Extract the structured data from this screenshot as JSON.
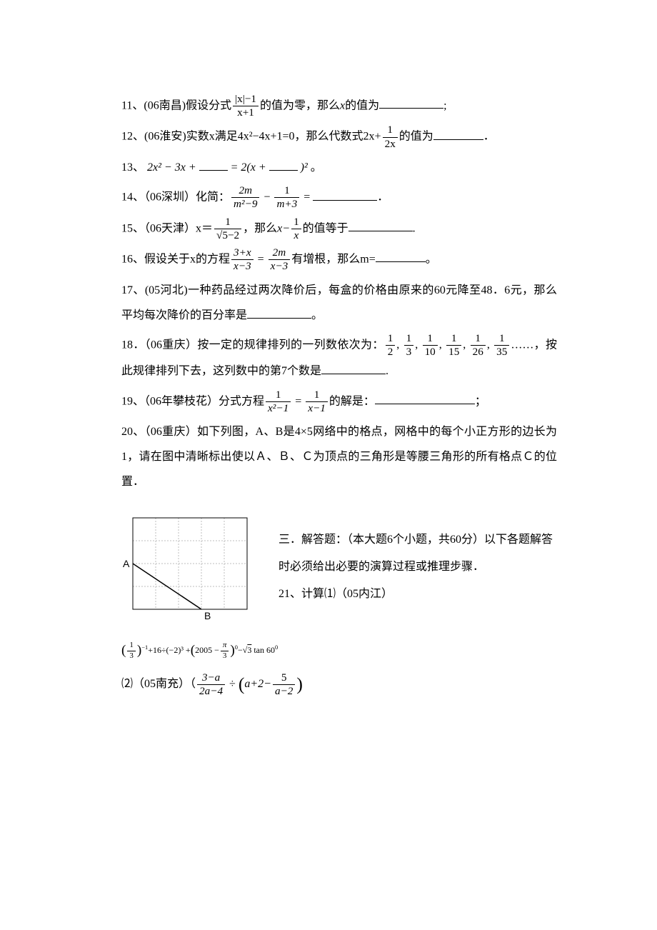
{
  "questions": {
    "q11": {
      "num": "11、",
      "source": "(06南昌)",
      "prefix": "假设分式",
      "frac_num": "|x|−1",
      "frac_den": "x+1",
      "suffix1": "的值为零，那么",
      "var": "x",
      "suffix2": "的值为",
      "tail": ";"
    },
    "q12": {
      "num": "12、",
      "source": "(06淮安)",
      "text1": "实数x满足4x²−4x+1=0，那么代数式2x+",
      "frac_num": "1",
      "frac_den": "2x",
      "text2": "的值为",
      "tail": "．"
    },
    "q13": {
      "num": "13、",
      "expr1": "2x² − 3x +",
      "expr2": "= 2(x +",
      "expr3": ")²",
      "tail": "。"
    },
    "q14": {
      "num": "14、",
      "source": "（06深圳）",
      "label": "化简：",
      "f1_num": "2m",
      "f1_den": "m²−9",
      "minus": "−",
      "f2_num": "1",
      "f2_den": "m+3",
      "eq": "=",
      "tail": "．"
    },
    "q15": {
      "num": "15、",
      "source": "（06天津）",
      "text1": "x＝",
      "f1_num": "1",
      "f1_den": "√5−2",
      "text2": "，那么",
      "var": "x−",
      "f2_num": "1",
      "f2_den": "x",
      "text3": "的值等于",
      "tail": "."
    },
    "q16": {
      "num": "16、",
      "text1": "假设关于x的方程",
      "f1_num": "3+x",
      "f1_den": "x−3",
      "eq": "=",
      "f2_num": "2m",
      "f2_den": "x−3",
      "text2": "有增根，那么m=",
      "tail": "。"
    },
    "q17": {
      "num": "17、",
      "source": "(05河北)",
      "text": "一种药品经过两次降价后，每盒的价格由原来的60元降至48．6元，那么平均每次降价的百分率是",
      "tail": "。"
    },
    "q18": {
      "num": "18．",
      "source": "（06重庆）",
      "text1": "按一定的规律排列的一列数依次为：",
      "seq": [
        "1/2",
        "1/3",
        "1/10",
        "1/15",
        "1/26",
        "1/35"
      ],
      "text2": "……，按此规律排列下去，这列数中的第7个数是",
      "tail": "."
    },
    "q19": {
      "num": "19、",
      "source": "（06年攀枝花）",
      "text1": "分式方程",
      "f1_num": "1",
      "f1_den": "x²−1",
      "eq": "=",
      "f2_num": "1",
      "f2_den": "x−1",
      "text2": "的解是：",
      "tail": "；"
    },
    "q20": {
      "num": "20、",
      "source": "（06重庆）",
      "text": "如下列图，A、B是4×5网络中的格点，网格中的每个小正方形的边长为1，请在图中清晰标出使以Ａ、Ｂ、Ｃ为顶点的三角形是等腰三角形的所有格点Ｃ的位置．"
    }
  },
  "section3": {
    "title": "三．解答题：（本大题6个小题，共60分）以下各题解答时必须给出必要的演算过程或推理步骤．",
    "q21_label": "21、计算⑴（05内江）",
    "q21_formula": {
      "p1_num": "1",
      "p1_den": "3",
      "exp1": "−1",
      "t1": "+16÷(−2)³ +",
      "p2_inner": "2005 −",
      "p2_num": "π",
      "p2_den": "3",
      "exp2": "0",
      "t2": "−",
      "sqrt": "3",
      "t3": " tan 60",
      "exp3": "0"
    },
    "q21_2_label": "⑵（05南充）（",
    "q21_2": {
      "f1_num": "3−a",
      "f1_den": "2a−4",
      "div": "÷",
      "paren_open": "(",
      "inner": "a+2−",
      "f2_num": "5",
      "f2_den": "a−2",
      "paren_close": ")"
    }
  },
  "grid": {
    "cols": 5,
    "rows": 4,
    "cell": 32,
    "A_label": "A",
    "B_label": "B",
    "A_pos": [
      0,
      2
    ],
    "B_pos": [
      3,
      4
    ],
    "border_color": "#000000",
    "grid_color": "#bdbdbd"
  }
}
